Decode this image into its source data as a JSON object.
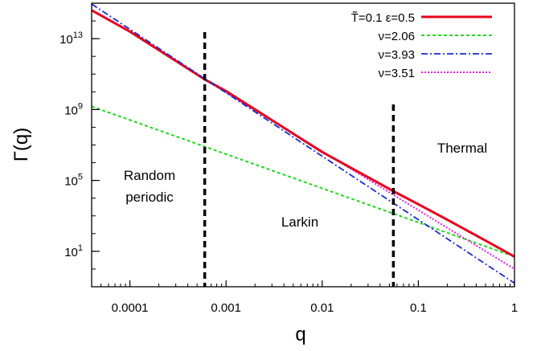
{
  "chart_data": {
    "type": "line",
    "x_scale": "log",
    "y_scale": "log",
    "xlabel": "q",
    "ylabel": "Γ(q)",
    "xlim": [
      4e-05,
      1
    ],
    "ylim": [
      0.1,
      1000000000000000.0
    ],
    "x_ticks": [
      {
        "value": 0.0001,
        "label": "0.0001"
      },
      {
        "value": 0.001,
        "label": "0.001"
      },
      {
        "value": 0.01,
        "label": "0.01"
      },
      {
        "value": 0.1,
        "label": "0.1"
      },
      {
        "value": 1,
        "label": "1"
      }
    ],
    "y_ticks": [
      {
        "exp": 1,
        "base": "10",
        "sup": "1"
      },
      {
        "exp": 5,
        "base": "10",
        "sup": "5"
      },
      {
        "exp": 9,
        "base": "10",
        "sup": "9"
      },
      {
        "exp": 13,
        "base": "10",
        "sup": "13"
      }
    ],
    "series": [
      {
        "name": "T̃=0.1 ε=0.5",
        "color": "#e8001c",
        "style": "solid",
        "points": [
          [
            4e-05,
            400000000000000.0
          ],
          [
            0.0001,
            25000000000000.0
          ],
          [
            0.0006,
            50000000000.0
          ],
          [
            0.001,
            11000000000.0
          ],
          [
            0.01,
            4000000.0
          ],
          [
            0.03,
            150000.0
          ],
          [
            0.06,
            19000.0
          ],
          [
            0.1,
            4500.0
          ],
          [
            0.2,
            600
          ],
          [
            0.5,
            40
          ],
          [
            1,
            5
          ]
        ]
      },
      {
        "name": "ν=2.06",
        "color": "#22d81e",
        "style": "dashed",
        "points": [
          [
            4e-05,
            1500000000.0
          ],
          [
            1,
            5
          ]
        ]
      },
      {
        "name": "ν=3.93",
        "color": "#1a2ccf",
        "style": "dashdot",
        "points": [
          [
            4e-05,
            900000000000000.0
          ],
          [
            1,
            0.16
          ]
        ]
      },
      {
        "name": "ν=3.51",
        "color": "#e020e0",
        "style": "dotted",
        "points": [
          [
            0.0006,
            50000000000.0
          ],
          [
            1,
            1
          ]
        ]
      }
    ],
    "vlines": [
      {
        "x": 0.0006,
        "color": "#000000",
        "style": "dashed"
      },
      {
        "x": 0.055,
        "color": "#000000",
        "style": "dashed"
      }
    ],
    "annotations": [
      {
        "lines": [
          "Random",
          "periodic"
        ]
      },
      {
        "lines": [
          "Larkin"
        ]
      },
      {
        "lines": [
          "Thermal"
        ]
      }
    ],
    "legend_position": "top-right",
    "grid": false
  }
}
